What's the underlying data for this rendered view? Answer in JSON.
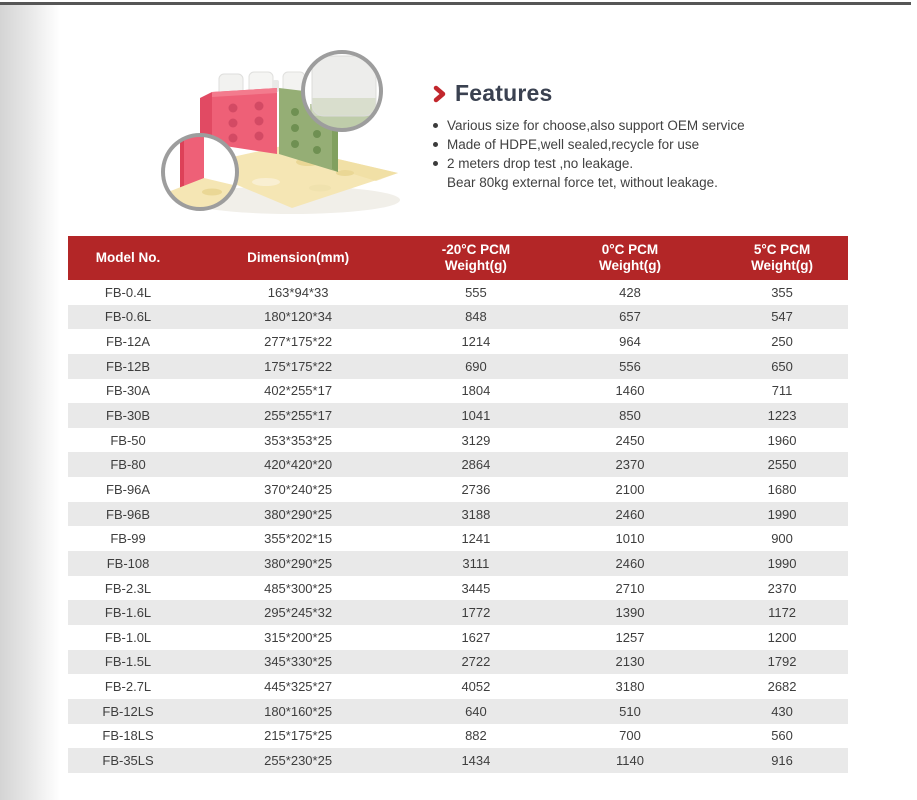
{
  "features": {
    "title": "Features",
    "bullets": [
      "Various size for choose,also support OEM service",
      "Made of HDPE,well sealed,recycle for use",
      "2 meters drop test ,no leakage."
    ],
    "continuation": "Bear 80kg external force tet, without leakage."
  },
  "table": {
    "headers": [
      [
        "Model No."
      ],
      [
        "Dimension(mm)"
      ],
      [
        "-20°C PCM",
        "Weight(g)"
      ],
      [
        "0°C PCM",
        "Weight(g)"
      ],
      [
        "5°C PCM",
        "Weight(g)"
      ]
    ],
    "rows": [
      [
        "FB-0.4L",
        "163*94*33",
        "555",
        "428",
        "355"
      ],
      [
        "FB-0.6L",
        "180*120*34",
        "848",
        "657",
        "547"
      ],
      [
        "FB-12A",
        "277*175*22",
        "1214",
        "964",
        "250"
      ],
      [
        "FB-12B",
        "175*175*22",
        "690",
        "556",
        "650"
      ],
      [
        "FB-30A",
        "402*255*17",
        "1804",
        "1460",
        "711"
      ],
      [
        "FB-30B",
        "255*255*17",
        "1041",
        "850",
        "1223"
      ],
      [
        "FB-50",
        "353*353*25",
        "3129",
        "2450",
        "1960"
      ],
      [
        "FB-80",
        "420*420*20",
        "2864",
        "2370",
        "2550"
      ],
      [
        "FB-96A",
        "370*240*25",
        "2736",
        "2100",
        "1680"
      ],
      [
        "FB-96B",
        "380*290*25",
        "3188",
        "2460",
        "1990"
      ],
      [
        "FB-99",
        "355*202*15",
        "1241",
        "1010",
        "900"
      ],
      [
        "FB-108",
        "380*290*25",
        "3111",
        "2460",
        "1990"
      ],
      [
        "FB-2.3L",
        "485*300*25",
        "3445",
        "2710",
        "2370"
      ],
      [
        "FB-1.6L",
        "295*245*32",
        "1772",
        "1390",
        "1172"
      ],
      [
        "FB-1.0L",
        "315*200*25",
        "1627",
        "1257",
        "1200"
      ],
      [
        "FB-1.5L",
        "345*330*25",
        "2722",
        "2130",
        "1792"
      ],
      [
        "FB-2.7L",
        "445*325*27",
        "4052",
        "3180",
        "2682"
      ],
      [
        "FB-12LS",
        "180*160*25",
        "640",
        "510",
        "430"
      ],
      [
        "FB-18LS",
        "215*175*25",
        "882",
        "700",
        "560"
      ],
      [
        "FB-35LS",
        "255*230*25",
        "1434",
        "1140",
        "916"
      ]
    ]
  },
  "icons": {
    "features_arrow": "chevron-right",
    "bullet": "filled-dot",
    "magnifier": "zoom-detail-circle"
  },
  "colors": {
    "table_header_red": "#b32627",
    "accent_red": "#c2272d",
    "row_alt_gray": "#e9e9e9",
    "body_text": "#414141",
    "heading_text": "#3a4150",
    "product_pink": "#ee6077",
    "product_green": "#95ae75",
    "product_floor_yellow": "#f5e6b4"
  }
}
